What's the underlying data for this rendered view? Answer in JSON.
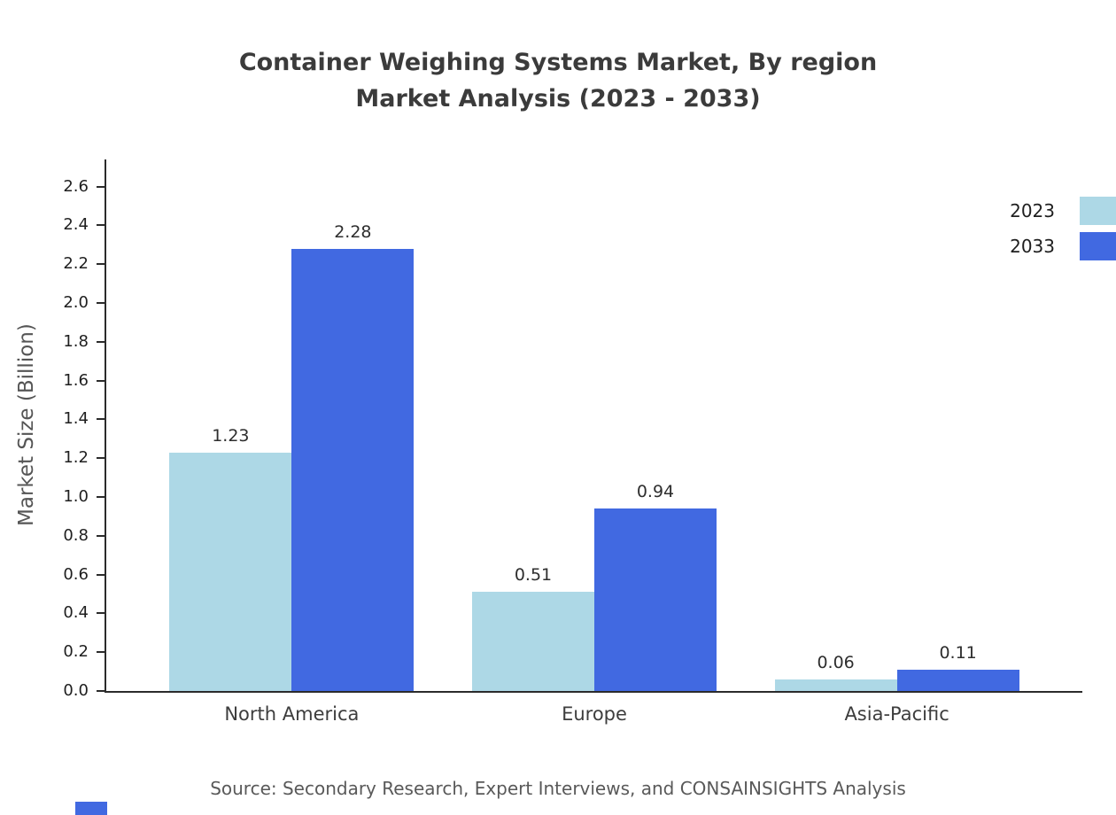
{
  "title": {
    "line1": "Container Weighing Systems Market, By region",
    "line2": "Market Analysis (2023 - 2033)"
  },
  "chart_data": {
    "type": "bar",
    "title": "Container Weighing Systems Market, By region Market Analysis (2023 - 2033)",
    "categories": [
      "North America",
      "Europe",
      "Asia-Pacific"
    ],
    "series": [
      {
        "name": "2023",
        "color": "#add8e6",
        "values": [
          1.23,
          0.51,
          0.06
        ]
      },
      {
        "name": "2033",
        "color": "#4169e1",
        "values": [
          2.28,
          0.94,
          0.11
        ]
      }
    ],
    "xlabel": "",
    "ylabel": "Market Size (Billion)",
    "ylim": [
      0,
      2.74
    ],
    "yticks": [
      0.0,
      0.2,
      0.4,
      0.6,
      0.8,
      1.0,
      1.2,
      1.4,
      1.6,
      1.8,
      2.0,
      2.2,
      2.4,
      2.6
    ],
    "grid": false,
    "legend_position": "top-right",
    "value_labels": true
  },
  "source": "Source: Secondary Research, Expert Interviews, and CONSAINSIGHTS Analysis"
}
